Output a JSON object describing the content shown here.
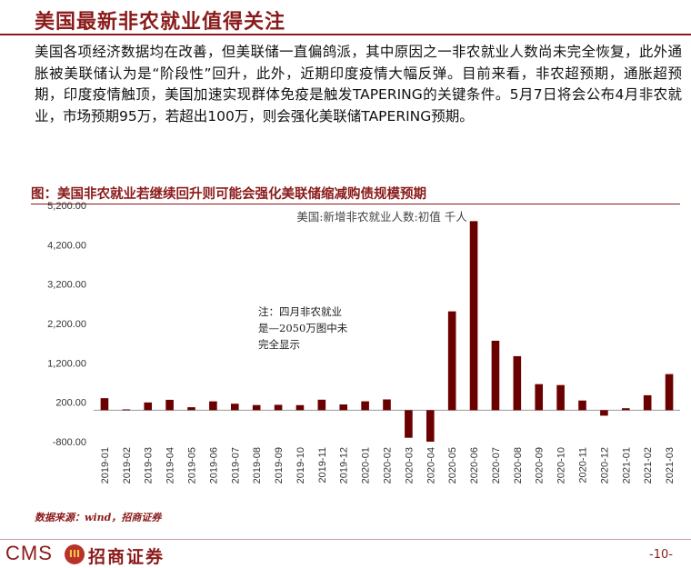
{
  "header": {
    "title": "美国最新非农就业值得关注"
  },
  "body_text": "美国各项经济数据均在改善，但美联储一直偏鸽派，其中原因之一非农就业人数尚未完全恢复，此外通胀被美联储认为是“阶段性”回升，此外，近期印度疫情大幅反弹。目前来看，非农超预期，通胀超预期，印度疫情触顶，美国加速实现群体免疫是触发TAPERING的关键条件。5月7日将会公布4月非农就业，市场预期95万，若超出100万，则会强化美联储TAPERING预期。",
  "figure": {
    "title": "图：美国非农就业若继续回升则可能会强化美联储缩减购债规模预期",
    "source": "数据来源：wind，招商证券"
  },
  "footer": {
    "logo_text": "CMS",
    "logo_mark": "III",
    "logo_cn": "招商证券",
    "page_number": "-10-"
  },
  "colors": {
    "brand": "#8b1a1a",
    "bar": "#6b0000"
  },
  "chart_data": {
    "type": "bar",
    "title": "美国:新增非农就业人数:初值 千人",
    "categories": [
      "2019-01",
      "2019-02",
      "2019-03",
      "2019-04",
      "2019-05",
      "2019-06",
      "2019-07",
      "2019-08",
      "2019-09",
      "2019-10",
      "2019-11",
      "2019-12",
      "2020-01",
      "2020-02",
      "2020-03",
      "2020-04",
      "2020-05",
      "2020-06",
      "2020-07",
      "2020-08",
      "2020-09",
      "2020-10",
      "2020-11",
      "2020-12",
      "2021-01",
      "2021-02",
      "2021-03"
    ],
    "values": [
      304,
      20,
      196,
      263,
      75,
      224,
      164,
      130,
      136,
      128,
      266,
      145,
      225,
      273,
      -701,
      -800,
      2509,
      4800,
      1763,
      1371,
      661,
      638,
      245,
      -140,
      49,
      379,
      916
    ],
    "yticks": [
      "5,200.00",
      "4,200.00",
      "3,200.00",
      "2,200.00",
      "1,200.00",
      "200.00",
      "-800.00"
    ],
    "ylim": [
      -800,
      5200
    ],
    "annotation": [
      "注：四月非农就业",
      "是—2050万图中未",
      "完全显示"
    ],
    "grid": false,
    "legend": "none"
  }
}
